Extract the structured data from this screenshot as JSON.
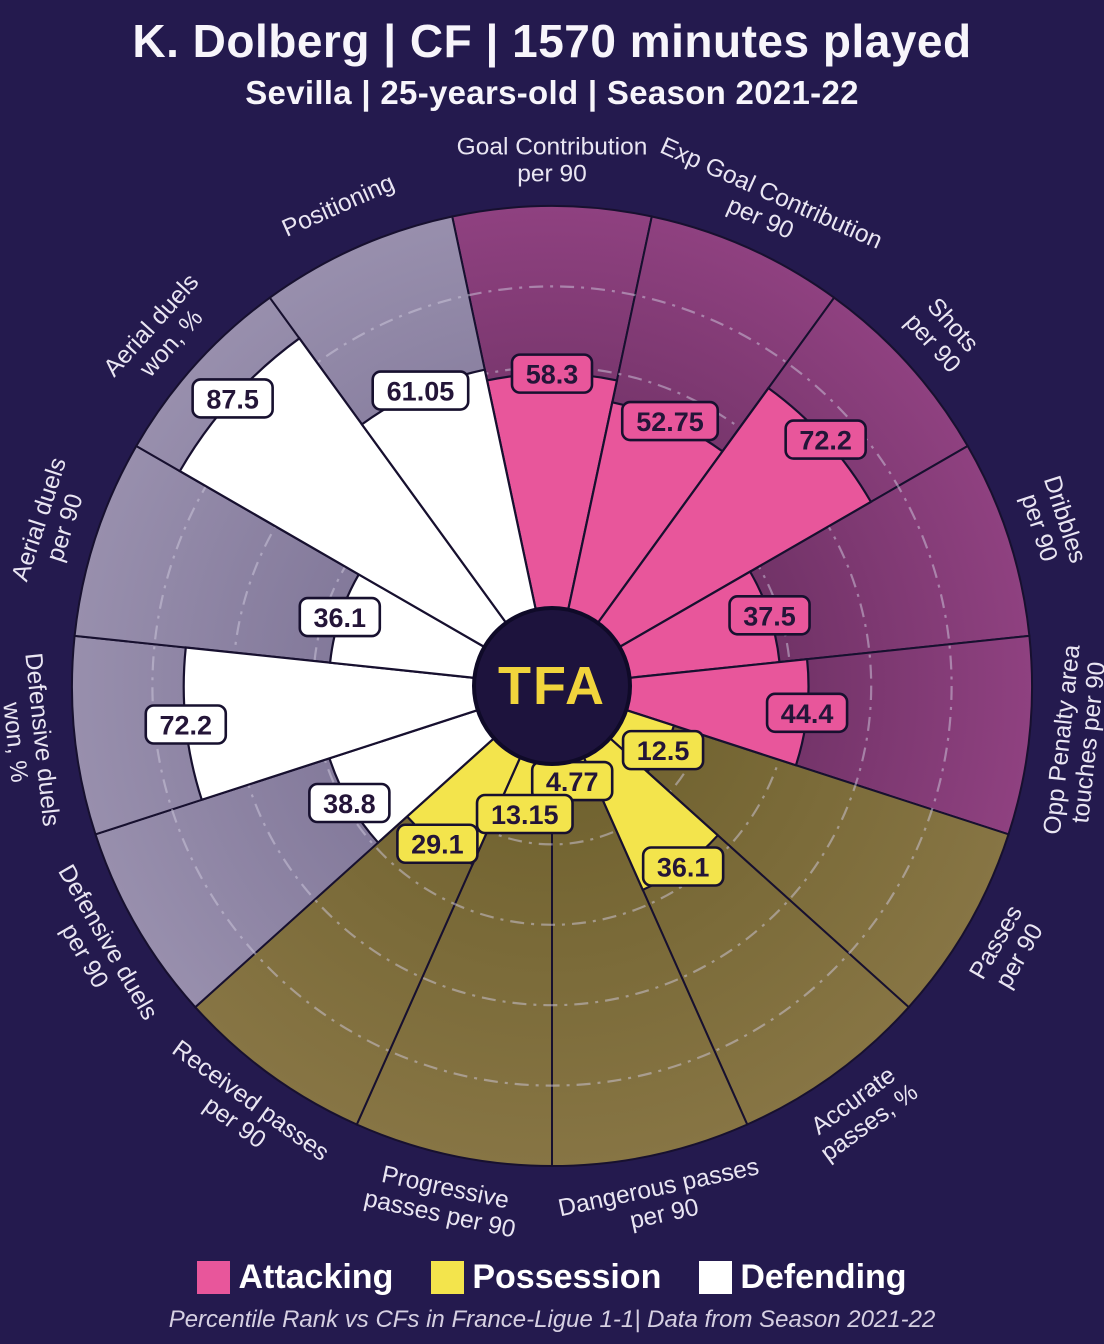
{
  "header": {
    "title": "K. Dolberg | CF | 1570 minutes played",
    "subtitle": "Sevilla | 25-years-old | Season 2021-22"
  },
  "center_logo": "TFA",
  "chart_data": {
    "type": "pizza-percentile-radar",
    "title": "K. Dolberg | CF | 1570 minutes played",
    "subtitle": "Sevilla | 25-years-old | Season 2021-22",
    "rlim": [
      0,
      100
    ],
    "rings": [
      20,
      40,
      60,
      80
    ],
    "ring_color": "#cfc9de",
    "outline_color": "#17102f",
    "background_color": "#241a4e",
    "label_color": "#e9e5f2",
    "value_text_color": "#241538",
    "groups": [
      {
        "name": "Attacking",
        "color": "#e8569b",
        "bg_inner": "#5f2a58",
        "bg_outer": "#8f4180"
      },
      {
        "name": "Possession",
        "color": "#f3e44c",
        "bg_inner": "#6f612e",
        "bg_outer": "#877544"
      },
      {
        "name": "Defending",
        "color": "#ffffff",
        "bg_inner": "#776d90",
        "bg_outer": "#988fad"
      }
    ],
    "params": [
      {
        "label": "Goal Contribution\nper 90",
        "value": 58.3,
        "display": "58.3",
        "group": 0
      },
      {
        "label": "Exp Goal Contribution\nper 90",
        "value": 52.75,
        "display": "52.75",
        "group": 0
      },
      {
        "label": "Shots\nper 90",
        "value": 72.2,
        "display": "72.2",
        "group": 0
      },
      {
        "label": "Dribbles\nper 90",
        "value": 37.5,
        "display": "37.5",
        "group": 0
      },
      {
        "label": "Opp Penalty area\ntouches per 90",
        "value": 44.4,
        "display": "44.4",
        "group": 0
      },
      {
        "label": "Passes\nper 90",
        "value": 12.5,
        "display": "12.5",
        "group": 1
      },
      {
        "label": "Accurate\npasses, %",
        "value": 36.1,
        "display": "36.1",
        "group": 1
      },
      {
        "label": "Dangerous passes\nper 90",
        "value": 4.77,
        "display": "4.77",
        "group": 1
      },
      {
        "label": "Progressive\npasses per 90",
        "value": 13.15,
        "display": "13.15",
        "group": 1
      },
      {
        "label": "Received passes\nper 90",
        "value": 29.1,
        "display": "29.1",
        "group": 1
      },
      {
        "label": "Defensive duels\nper 90",
        "value": 38.8,
        "display": "38.8",
        "group": 2
      },
      {
        "label": "Defensive duels\nwon, %",
        "value": 72.2,
        "display": "72.2",
        "group": 2
      },
      {
        "label": "Aerial duels\nper 90",
        "value": 36.1,
        "display": "36.1",
        "group": 2
      },
      {
        "label": "Aerial duels\nwon, %",
        "value": 87.5,
        "display": "87.5",
        "group": 2
      },
      {
        "label": "Positioning",
        "value": 61.05,
        "display": "61.05",
        "group": 2
      }
    ]
  },
  "legend": {
    "items": [
      {
        "label": "Attacking"
      },
      {
        "label": "Possession"
      },
      {
        "label": "Defending"
      }
    ]
  },
  "footer": {
    "note": "Percentile Rank vs CFs in France-Ligue 1-1| Data from Season 2021-22"
  }
}
